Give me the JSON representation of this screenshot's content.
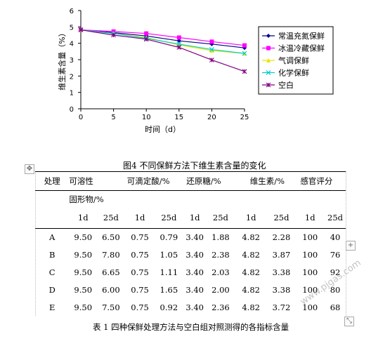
{
  "chart_data": {
    "type": "line",
    "title": "",
    "xlabel": "时间（d）",
    "ylabel": "维生素含量（%）",
    "x": [
      0,
      5,
      10,
      15,
      20,
      25
    ],
    "xticks": [
      "0",
      "5",
      "10",
      "15",
      "20",
      "25"
    ],
    "yticks": [
      "0",
      "1",
      "2",
      "3",
      "4",
      "5",
      "6"
    ],
    "xlim": [
      0,
      25
    ],
    "ylim": [
      0,
      6
    ],
    "grid": false,
    "legend_position": "right",
    "series": [
      {
        "name": "常温充氮保鲜",
        "color": "#00008b",
        "marker": "diamond",
        "values": [
          4.82,
          4.65,
          4.45,
          4.15,
          3.95,
          3.72
        ]
      },
      {
        "name": "冰温冷藏保鲜",
        "color": "#ff00ff",
        "marker": "square",
        "values": [
          4.82,
          4.72,
          4.6,
          4.35,
          4.1,
          3.87
        ]
      },
      {
        "name": "气调保鲜",
        "color": "#e6e600",
        "marker": "triangle",
        "values": [
          4.82,
          4.6,
          4.35,
          3.9,
          3.55,
          3.38
        ]
      },
      {
        "name": "化学保鲜",
        "color": "#00cccc",
        "marker": "x",
        "values": [
          4.82,
          4.6,
          4.3,
          3.95,
          3.62,
          3.38
        ]
      },
      {
        "name": "空白",
        "color": "#800080",
        "marker": "star",
        "values": [
          4.82,
          4.5,
          4.25,
          3.75,
          2.98,
          2.28
        ]
      }
    ]
  },
  "figure_caption": "图4 不同保鲜方法下维生素含量的变化",
  "table": {
    "header1": [
      "处理",
      "可溶性",
      "可滴定酸/%",
      "还原糖/%",
      "维生素/%",
      "感官评分"
    ],
    "header2": "固形物/%",
    "subheader": [
      "1d",
      "25d",
      "1d",
      "25d",
      "1d",
      "25d",
      "1d",
      "25d",
      "1d",
      "25d"
    ],
    "rows": [
      [
        "A",
        "9.50",
        "6.50",
        "0.75",
        "0.79",
        "3.40",
        "1.88",
        "4.82",
        "2.28",
        "100",
        "40"
      ],
      [
        "B",
        "9.50",
        "7.80",
        "0.75",
        "1.05",
        "3.40",
        "2.38",
        "4.82",
        "3.87",
        "100",
        "76"
      ],
      [
        "C",
        "9.50",
        "6.65",
        "0.75",
        "1.11",
        "3.40",
        "2.03",
        "4.82",
        "3.38",
        "100",
        "92"
      ],
      [
        "D",
        "9.50",
        "6.00",
        "0.75",
        "1.65",
        "3.40",
        "2.00",
        "4.82",
        "3.38",
        "100",
        "80"
      ],
      [
        "E",
        "9.50",
        "7.50",
        "0.75",
        "0.92",
        "3.40",
        "2.36",
        "4.82",
        "3.72",
        "100",
        "68"
      ]
    ],
    "caption": "表 1 四种保鲜处理方法与空白组对照测得的各指标含量"
  },
  "icons": {
    "move": "move-icon",
    "add": "add-icon",
    "resize": "resize-icon"
  }
}
